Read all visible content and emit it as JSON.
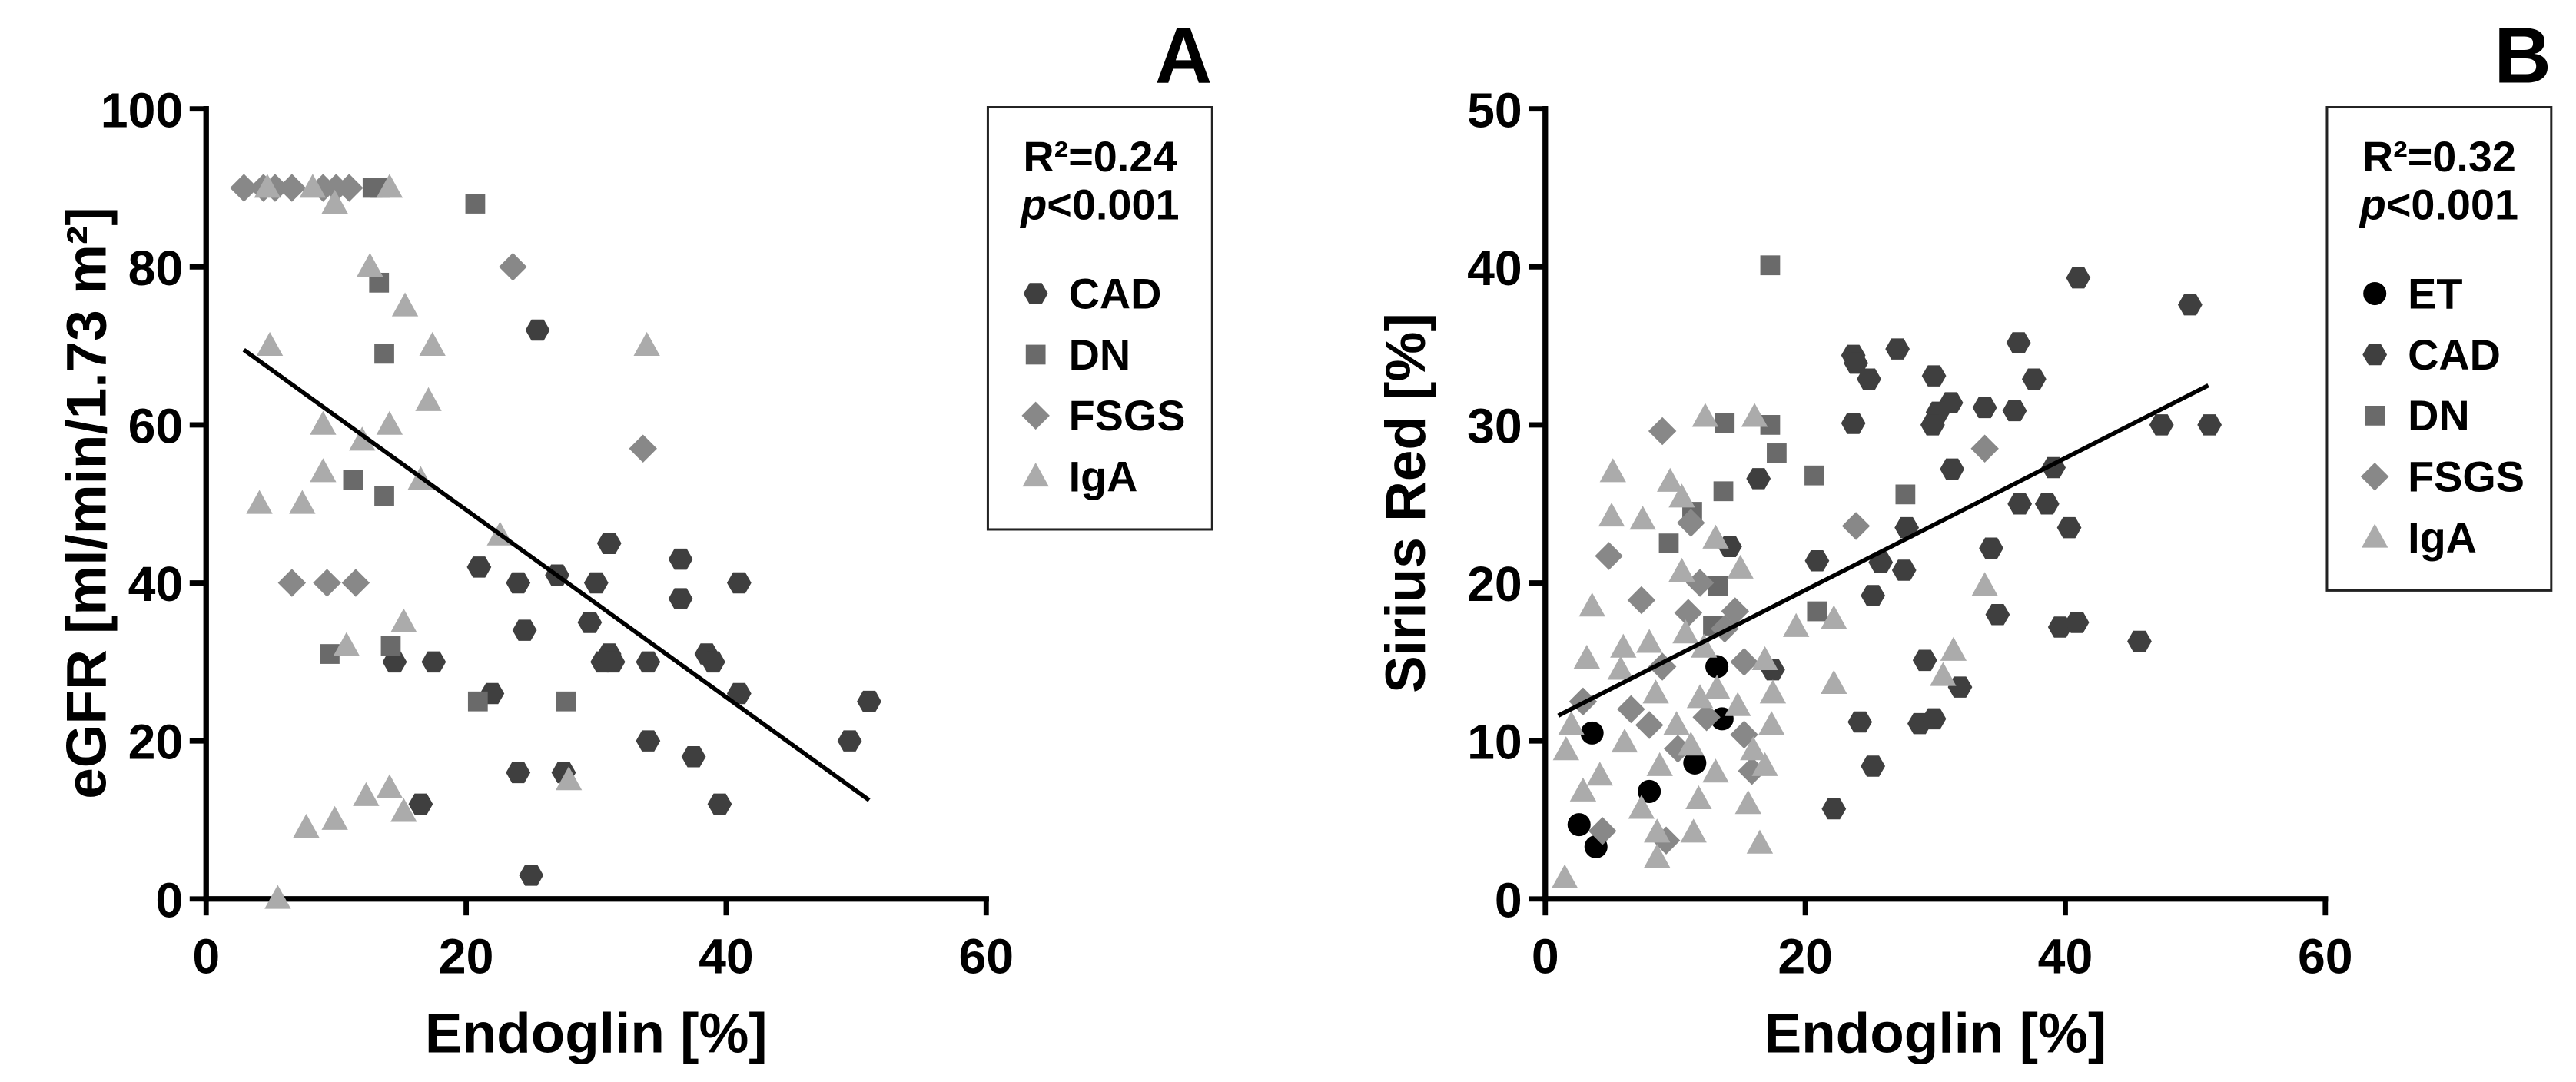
{
  "chart_data": [
    {
      "type": "scatter",
      "title": "A",
      "xlabel": "Endoglin [%]",
      "ylabel": "eGFR [ml/min/1.73 m²]",
      "xlim": [
        0,
        60
      ],
      "ylim": [
        0,
        100
      ],
      "xticks": [
        0,
        20,
        40,
        60
      ],
      "yticks": [
        0,
        20,
        40,
        60,
        80,
        100
      ],
      "grid": false,
      "legend": "right",
      "stats": {
        "r_squared": "R²=0.24",
        "p_symbol": "p",
        "p_value": "<0.001"
      },
      "regression_line": {
        "x": [
          2.9,
          51
        ],
        "y": [
          69.5,
          12.5
        ]
      },
      "series": [
        {
          "name": "CAD",
          "marker": "hexagon",
          "color": "#3f3f3f",
          "points": [
            [
              25.5,
              72
            ],
            [
              31,
              45
            ],
            [
              21,
              42
            ],
            [
              24,
              40
            ],
            [
              27,
              41
            ],
            [
              30,
              40
            ],
            [
              36.5,
              43
            ],
            [
              41,
              40
            ],
            [
              36.5,
              38
            ],
            [
              24.5,
              34
            ],
            [
              29.5,
              35
            ],
            [
              30.5,
              30
            ],
            [
              31,
              31
            ],
            [
              31.3,
              30
            ],
            [
              34,
              30
            ],
            [
              38.5,
              31
            ],
            [
              39,
              30
            ],
            [
              14.5,
              30
            ],
            [
              17.5,
              30
            ],
            [
              22,
              26
            ],
            [
              41,
              26
            ],
            [
              34,
              20
            ],
            [
              37.5,
              18
            ],
            [
              49.5,
              20
            ],
            [
              51,
              25
            ],
            [
              39.5,
              12
            ],
            [
              24,
              16
            ],
            [
              27.5,
              16
            ],
            [
              16.5,
              12
            ],
            [
              25,
              3
            ]
          ]
        },
        {
          "name": "DN",
          "marker": "square",
          "color": "#6a6a6a",
          "points": [
            [
              12.8,
              90
            ],
            [
              13.4,
              90
            ],
            [
              20.7,
              88
            ],
            [
              13.3,
              78
            ],
            [
              13.7,
              69
            ],
            [
              13.7,
              51
            ],
            [
              11.3,
              53
            ],
            [
              9.5,
              31
            ],
            [
              14.2,
              32
            ],
            [
              20.9,
              25
            ],
            [
              27.7,
              25
            ]
          ]
        },
        {
          "name": "FSGS",
          "marker": "diamond",
          "color": "#888888",
          "points": [
            [
              2.9,
              90
            ],
            [
              4.4,
              90
            ],
            [
              5.3,
              90
            ],
            [
              6.6,
              90
            ],
            [
              9,
              90
            ],
            [
              10,
              90
            ],
            [
              11,
              90
            ],
            [
              23.6,
              80
            ],
            [
              33.6,
              57
            ],
            [
              6.6,
              40
            ],
            [
              9.3,
              40
            ],
            [
              11.5,
              40
            ]
          ]
        },
        {
          "name": "IgA",
          "marker": "triangle",
          "color": "#ababab",
          "points": [
            [
              4.7,
              90
            ],
            [
              8.2,
              90
            ],
            [
              9.9,
              88
            ],
            [
              14.1,
              90
            ],
            [
              12.6,
              80
            ],
            [
              15.3,
              75
            ],
            [
              4.9,
              70
            ],
            [
              17.4,
              70
            ],
            [
              33.9,
              70
            ],
            [
              17.1,
              63
            ],
            [
              14.1,
              60
            ],
            [
              9,
              60
            ],
            [
              12,
              58
            ],
            [
              16.5,
              53
            ],
            [
              9,
              54
            ],
            [
              4.1,
              50
            ],
            [
              7.4,
              50
            ],
            [
              22.6,
              46
            ],
            [
              15.2,
              35
            ],
            [
              10.8,
              32
            ],
            [
              14.1,
              14
            ],
            [
              12.3,
              13
            ],
            [
              15.2,
              11
            ],
            [
              9.9,
              10
            ],
            [
              7.7,
              9
            ],
            [
              27.9,
              15
            ],
            [
              5.5,
              0
            ]
          ]
        }
      ]
    },
    {
      "type": "scatter",
      "title": "B",
      "xlabel": "Endoglin [%]",
      "ylabel": "Sirius Red [%]",
      "xlim": [
        0,
        60
      ],
      "ylim": [
        0,
        50
      ],
      "xticks": [
        0,
        20,
        40,
        60
      ],
      "yticks": [
        0,
        10,
        20,
        30,
        40,
        50
      ],
      "grid": false,
      "legend": "right",
      "stats": {
        "r_squared": "R²=0.32",
        "p_symbol": "p",
        "p_value": "<0.001"
      },
      "regression_line": {
        "x": [
          1.0,
          51
        ],
        "y": [
          11.6,
          32.5
        ]
      },
      "series": [
        {
          "name": "ET",
          "marker": "circle",
          "color": "#000000",
          "points": [
            [
              3.6,
              10.5
            ],
            [
              13.2,
              14.7
            ],
            [
              13.6,
              11.4
            ],
            [
              11.5,
              8.6
            ],
            [
              8,
              6.8
            ],
            [
              2.6,
              4.7
            ],
            [
              3.9,
              3.3
            ]
          ]
        },
        {
          "name": "CAD",
          "marker": "hexagon",
          "color": "#3f3f3f",
          "points": [
            [
              41,
              39.3
            ],
            [
              49.6,
              37.6
            ],
            [
              36.4,
              35.2
            ],
            [
              23.7,
              34.4
            ],
            [
              27.1,
              34.8
            ],
            [
              23.9,
              33.9
            ],
            [
              29.9,
              33.1
            ],
            [
              24.9,
              32.9
            ],
            [
              37.6,
              32.9
            ],
            [
              31.2,
              31.4
            ],
            [
              33.8,
              31.1
            ],
            [
              36.1,
              30.9
            ],
            [
              30.2,
              30.8
            ],
            [
              29.8,
              30
            ],
            [
              23.7,
              30.1
            ],
            [
              16.4,
              26.6
            ],
            [
              31.3,
              27.2
            ],
            [
              39.1,
              27.3
            ],
            [
              47.4,
              30
            ],
            [
              51.1,
              30
            ],
            [
              36.5,
              25
            ],
            [
              38.6,
              25
            ],
            [
              27.8,
              23.5
            ],
            [
              40.3,
              23.5
            ],
            [
              34.3,
              22.2
            ],
            [
              14.2,
              22.3
            ],
            [
              20.9,
              21.4
            ],
            [
              25.8,
              21.3
            ],
            [
              27.6,
              20.8
            ],
            [
              25.2,
              19.2
            ],
            [
              34.8,
              18
            ],
            [
              39.6,
              17.2
            ],
            [
              40.9,
              17.5
            ],
            [
              45.7,
              16.3
            ],
            [
              29.2,
              15.1
            ],
            [
              31.9,
              13.4
            ],
            [
              17.5,
              14.5
            ],
            [
              24.2,
              11.2
            ],
            [
              28.8,
              11.1
            ],
            [
              29.9,
              11.4
            ],
            [
              25.2,
              8.4
            ],
            [
              22.2,
              5.7
            ]
          ]
        },
        {
          "name": "DN",
          "marker": "square",
          "color": "#6a6a6a",
          "points": [
            [
              17.3,
              40.1
            ],
            [
              17.3,
              30
            ],
            [
              13.8,
              30.1
            ],
            [
              17.8,
              28.2
            ],
            [
              20.7,
              26.8
            ],
            [
              13.7,
              25.8
            ],
            [
              27.7,
              25.6
            ],
            [
              11.3,
              24.5
            ],
            [
              9.5,
              22.5
            ],
            [
              13.3,
              19.8
            ],
            [
              20.9,
              18.2
            ],
            [
              12.9,
              17.3
            ]
          ]
        },
        {
          "name": "FSGS",
          "marker": "diamond",
          "color": "#888888",
          "points": [
            [
              9,
              29.6
            ],
            [
              33.8,
              28.5
            ],
            [
              23.9,
              23.6
            ],
            [
              11.2,
              23.8
            ],
            [
              4.9,
              21.7
            ],
            [
              11.9,
              20
            ],
            [
              7.4,
              18.9
            ],
            [
              11,
              18.1
            ],
            [
              13.8,
              17.1
            ],
            [
              14.6,
              18.2
            ],
            [
              9,
              14.7
            ],
            [
              15.3,
              15
            ],
            [
              2.9,
              12.5
            ],
            [
              6.6,
              12
            ],
            [
              8,
              11
            ],
            [
              15.9,
              8.1
            ],
            [
              15.3,
              10.4
            ],
            [
              4.4,
              4.3
            ],
            [
              9.3,
              3.7
            ],
            [
              10.2,
              9.5
            ],
            [
              12.4,
              11.5
            ]
          ]
        },
        {
          "name": "IgA",
          "marker": "triangle",
          "color": "#ababab",
          "points": [
            [
              16.1,
              30.5
            ],
            [
              9.6,
              26.4
            ],
            [
              10.5,
              25.4
            ],
            [
              5.1,
              24.2
            ],
            [
              13.1,
              22.8
            ],
            [
              15,
              20.9
            ],
            [
              10.5,
              20.7
            ],
            [
              3.6,
              18.5
            ],
            [
              19.3,
              17.2
            ],
            [
              22.2,
              17.7
            ],
            [
              33.8,
              19.8
            ],
            [
              22.2,
              13.6
            ],
            [
              30.6,
              14.1
            ],
            [
              31.4,
              15.7
            ],
            [
              8,
              16.2
            ],
            [
              6,
              15.9
            ],
            [
              12.2,
              15.9
            ],
            [
              16.9,
              15.1
            ],
            [
              17.5,
              13
            ],
            [
              13.2,
              13.3
            ],
            [
              8.5,
              13
            ],
            [
              11.9,
              12.7
            ],
            [
              2,
              11
            ],
            [
              10.1,
              11
            ],
            [
              17.4,
              11
            ],
            [
              6.1,
              9.9
            ],
            [
              11.2,
              9.7
            ],
            [
              16,
              9.4
            ],
            [
              1.6,
              9.4
            ],
            [
              8.8,
              8.4
            ],
            [
              4.2,
              7.8
            ],
            [
              16.9,
              8.4
            ],
            [
              13.1,
              8
            ],
            [
              2.9,
              6.8
            ],
            [
              7.4,
              5.7
            ],
            [
              8.6,
              4.2
            ],
            [
              15.6,
              6
            ],
            [
              11.8,
              6.3
            ],
            [
              16.5,
              3.5
            ],
            [
              11.4,
              4.2
            ],
            [
              8.6,
              2.6
            ],
            [
              1.5,
              1.3
            ],
            [
              5.2,
              27
            ],
            [
              12.3,
              30.5
            ],
            [
              7.5,
              24
            ],
            [
              14.8,
              12.2
            ],
            [
              5.8,
              14.5
            ],
            [
              3.2,
              15.2
            ],
            [
              10.8,
              16.8
            ]
          ]
        }
      ]
    }
  ]
}
